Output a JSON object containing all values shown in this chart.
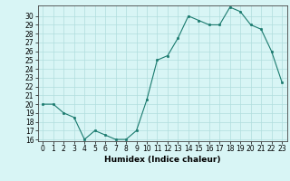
{
  "x": [
    0,
    1,
    2,
    3,
    4,
    5,
    6,
    7,
    8,
    9,
    10,
    11,
    12,
    13,
    14,
    15,
    16,
    17,
    18,
    19,
    20,
    21,
    22,
    23
  ],
  "y": [
    20,
    20,
    19,
    18.5,
    16,
    17,
    16.5,
    16,
    16,
    17,
    20.5,
    25,
    25.5,
    27.5,
    30,
    29.5,
    29,
    29,
    31,
    30.5,
    29,
    28.5,
    26,
    22.5
  ],
  "line_color": "#1a7a6e",
  "marker_color": "#1a7a6e",
  "bg_color": "#d8f5f5",
  "grid_color": "#b0dede",
  "xlabel": "Humidex (Indice chaleur)",
  "ylim_min": 15.8,
  "ylim_max": 31.2,
  "xlim_min": -0.5,
  "xlim_max": 23.5,
  "yticks": [
    16,
    17,
    18,
    19,
    20,
    21,
    22,
    23,
    24,
    25,
    26,
    27,
    28,
    29,
    30
  ],
  "xticks": [
    0,
    1,
    2,
    3,
    4,
    5,
    6,
    7,
    8,
    9,
    10,
    11,
    12,
    13,
    14,
    15,
    16,
    17,
    18,
    19,
    20,
    21,
    22,
    23
  ],
  "xlabel_fontsize": 6.5,
  "tick_fontsize": 5.5
}
